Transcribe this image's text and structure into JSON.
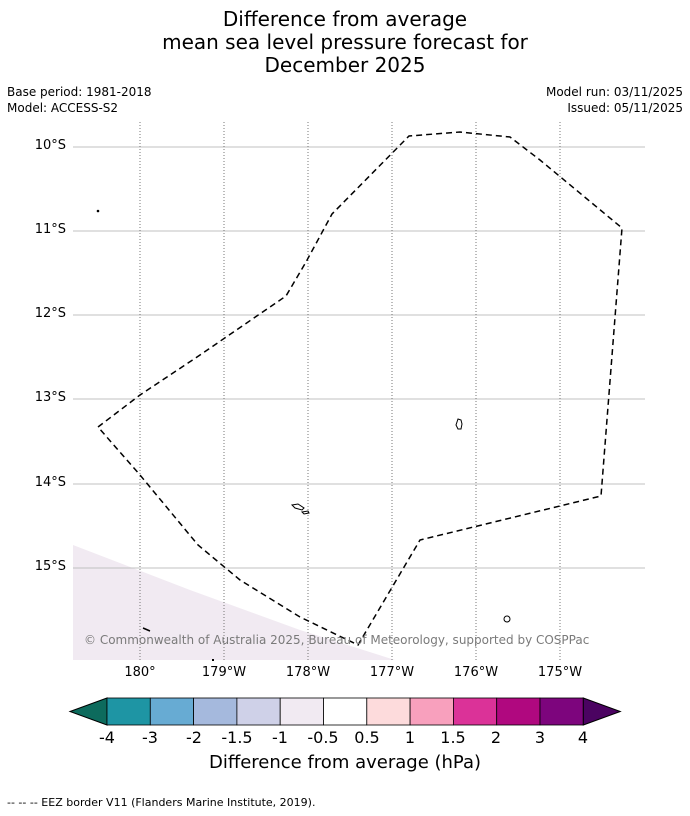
{
  "title": {
    "line1": "Difference from average",
    "line2": "mean sea level pressure forecast for",
    "line3": "December 2025"
  },
  "meta": {
    "base_period": "Base period: 1981-2018",
    "model": "Model: ACCESS-S2",
    "model_run": "Model run: 03/11/2025",
    "issued": "Issued: 05/11/2025"
  },
  "map": {
    "lat_labels": [
      "10°S",
      "11°S",
      "12°S",
      "13°S",
      "14°S",
      "15°S"
    ],
    "lon_labels": [
      "180°",
      "179°W",
      "178°W",
      "177°W",
      "176°W",
      "175°W"
    ],
    "copyright": "© Commonwealth of Australia 2025, Bureau of Meteorology, supported by COSPPac",
    "anomaly_region": {
      "category": "-0.5 to -1",
      "color": "#f1eaf2"
    },
    "gridline_color": "#c0c0c0"
  },
  "colorbar": {
    "title": "Difference from average (hPa)",
    "tick_labels": [
      "-4",
      "-3",
      "-2",
      "-1.5",
      "-1",
      "-0.5",
      "0.5",
      "1",
      "1.5",
      "2",
      "3",
      "4"
    ],
    "colors": [
      "#0d6b5d",
      "#1e95a4",
      "#67abd3",
      "#a5b9dd",
      "#cfd1e8",
      "#f1eaf2",
      "#ffffff",
      "#fddbdc",
      "#f8a0bd",
      "#db3298",
      "#b0087f",
      "#7d057d",
      "#4b0361"
    ]
  },
  "legend": {
    "text": "--  --  -- EEZ border V11 (Flanders Marine Institute, 2019)."
  }
}
